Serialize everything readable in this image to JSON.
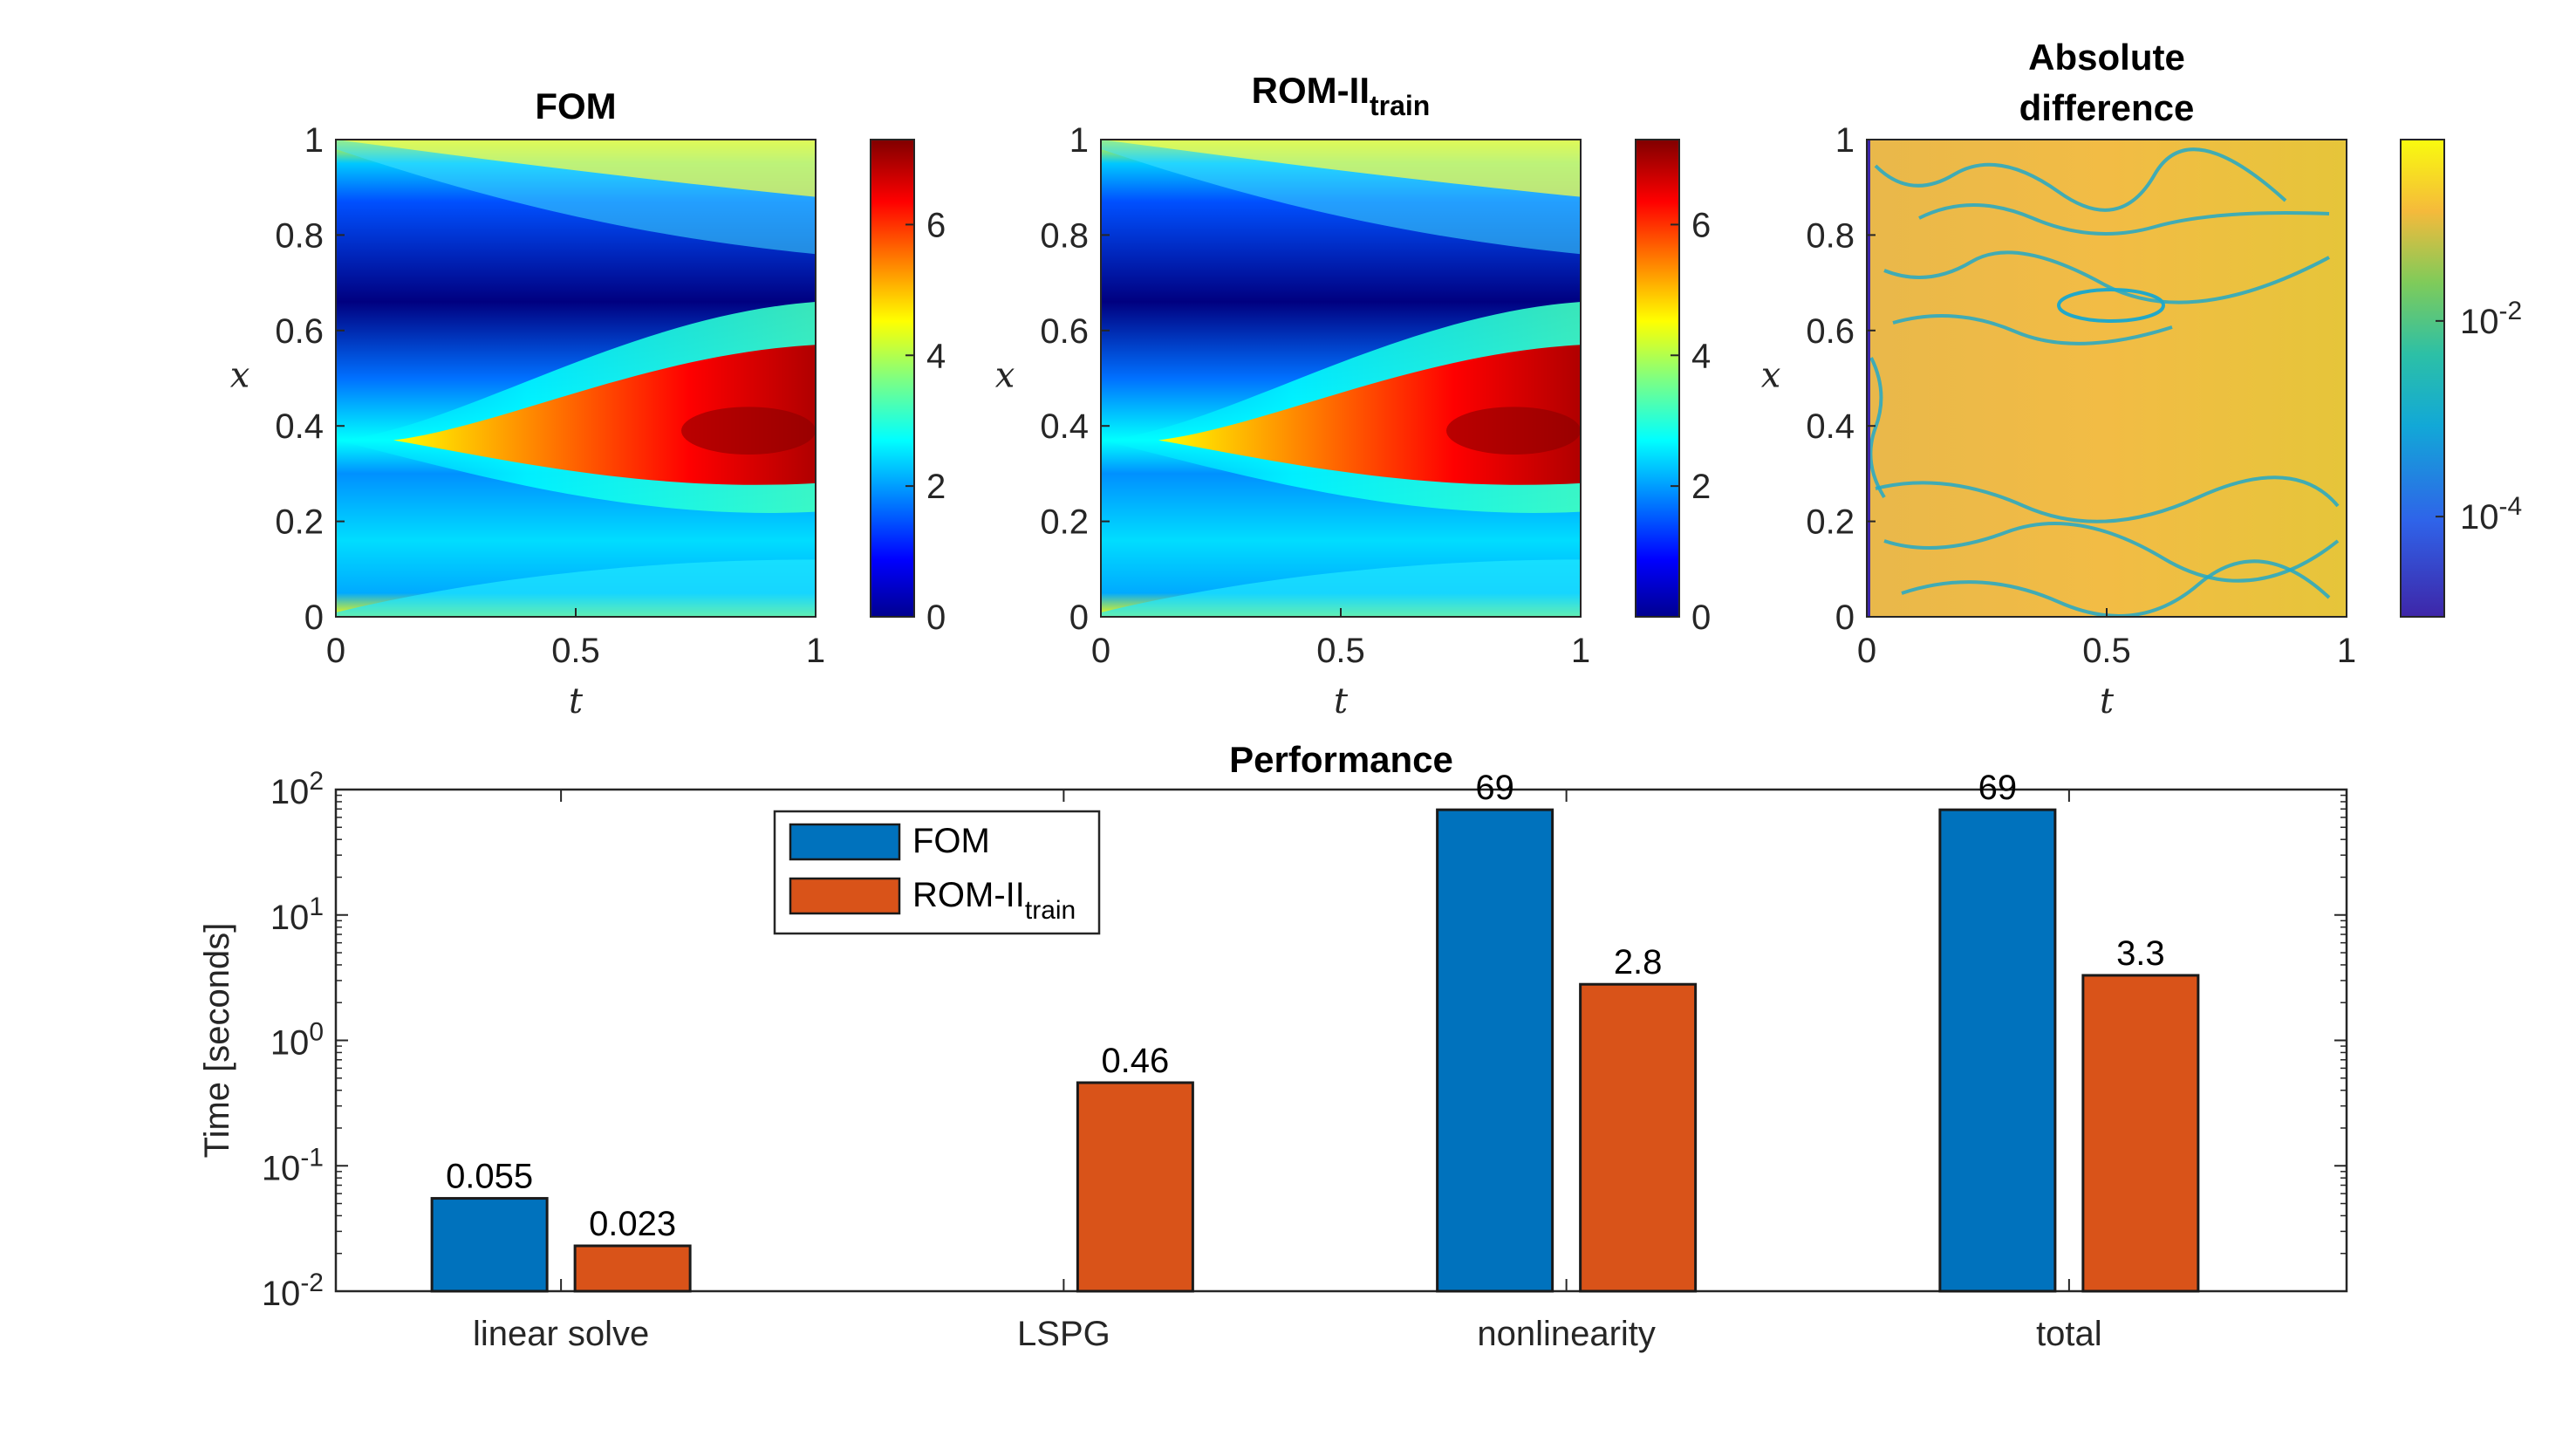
{
  "colors": {
    "fom": "#0072BD",
    "rom": "#D95319"
  },
  "heatmaps": [
    {
      "title": "FOM",
      "title_sub": "",
      "xlabel": "t",
      "ylabel": "x",
      "xticks": [
        "0",
        "0.5",
        "1"
      ],
      "yticks": [
        "0",
        "0.2",
        "0.4",
        "0.6",
        "0.8",
        "1"
      ],
      "colormap": "jet",
      "cbar_ticks": [
        "0",
        "2",
        "4",
        "6"
      ],
      "cbar_range": [
        0,
        7.3
      ]
    },
    {
      "title": "ROM-II",
      "title_sub": "train",
      "xlabel": "t",
      "ylabel": "x",
      "xticks": [
        "0",
        "0.5",
        "1"
      ],
      "yticks": [
        "0",
        "0.2",
        "0.4",
        "0.6",
        "0.8",
        "1"
      ],
      "colormap": "jet",
      "cbar_ticks": [
        "0",
        "2",
        "4",
        "6"
      ],
      "cbar_range": [
        0,
        7.3
      ]
    },
    {
      "title": "Absolute",
      "title2": "difference",
      "xlabel": "t",
      "ylabel": "x",
      "xticks": [
        "0",
        "0.5",
        "1"
      ],
      "yticks": [
        "0",
        "0.2",
        "0.4",
        "0.6",
        "0.8",
        "1"
      ],
      "colormap": "parula",
      "scale": "log",
      "cbar_ticks": [
        {
          "base": "10",
          "exp": "-2"
        },
        {
          "base": "10",
          "exp": "-4"
        }
      ]
    }
  ],
  "chart_data": {
    "type": "bar",
    "title": "Performance",
    "ylabel": "Time [seconds]",
    "yscale": "log",
    "ylim": [
      0.01,
      100
    ],
    "yticks": [
      {
        "base": "10",
        "exp": "-2"
      },
      {
        "base": "10",
        "exp": "-1"
      },
      {
        "base": "10",
        "exp": "0"
      },
      {
        "base": "10",
        "exp": "1"
      },
      {
        "base": "10",
        "exp": "2"
      }
    ],
    "categories": [
      "linear solve",
      "LSPG",
      "nonlinearity",
      "total"
    ],
    "legend_position": "top-left",
    "series": [
      {
        "name": "FOM",
        "name_sub": "",
        "values": [
          0.055,
          null,
          69,
          69
        ],
        "labels": [
          "0.055",
          "",
          "69",
          "69"
        ]
      },
      {
        "name": "ROM-II",
        "name_sub": "train",
        "values": [
          0.023,
          0.46,
          2.8,
          3.3
        ],
        "labels": [
          "0.023",
          "0.46",
          "2.8",
          "3.3"
        ]
      }
    ]
  }
}
